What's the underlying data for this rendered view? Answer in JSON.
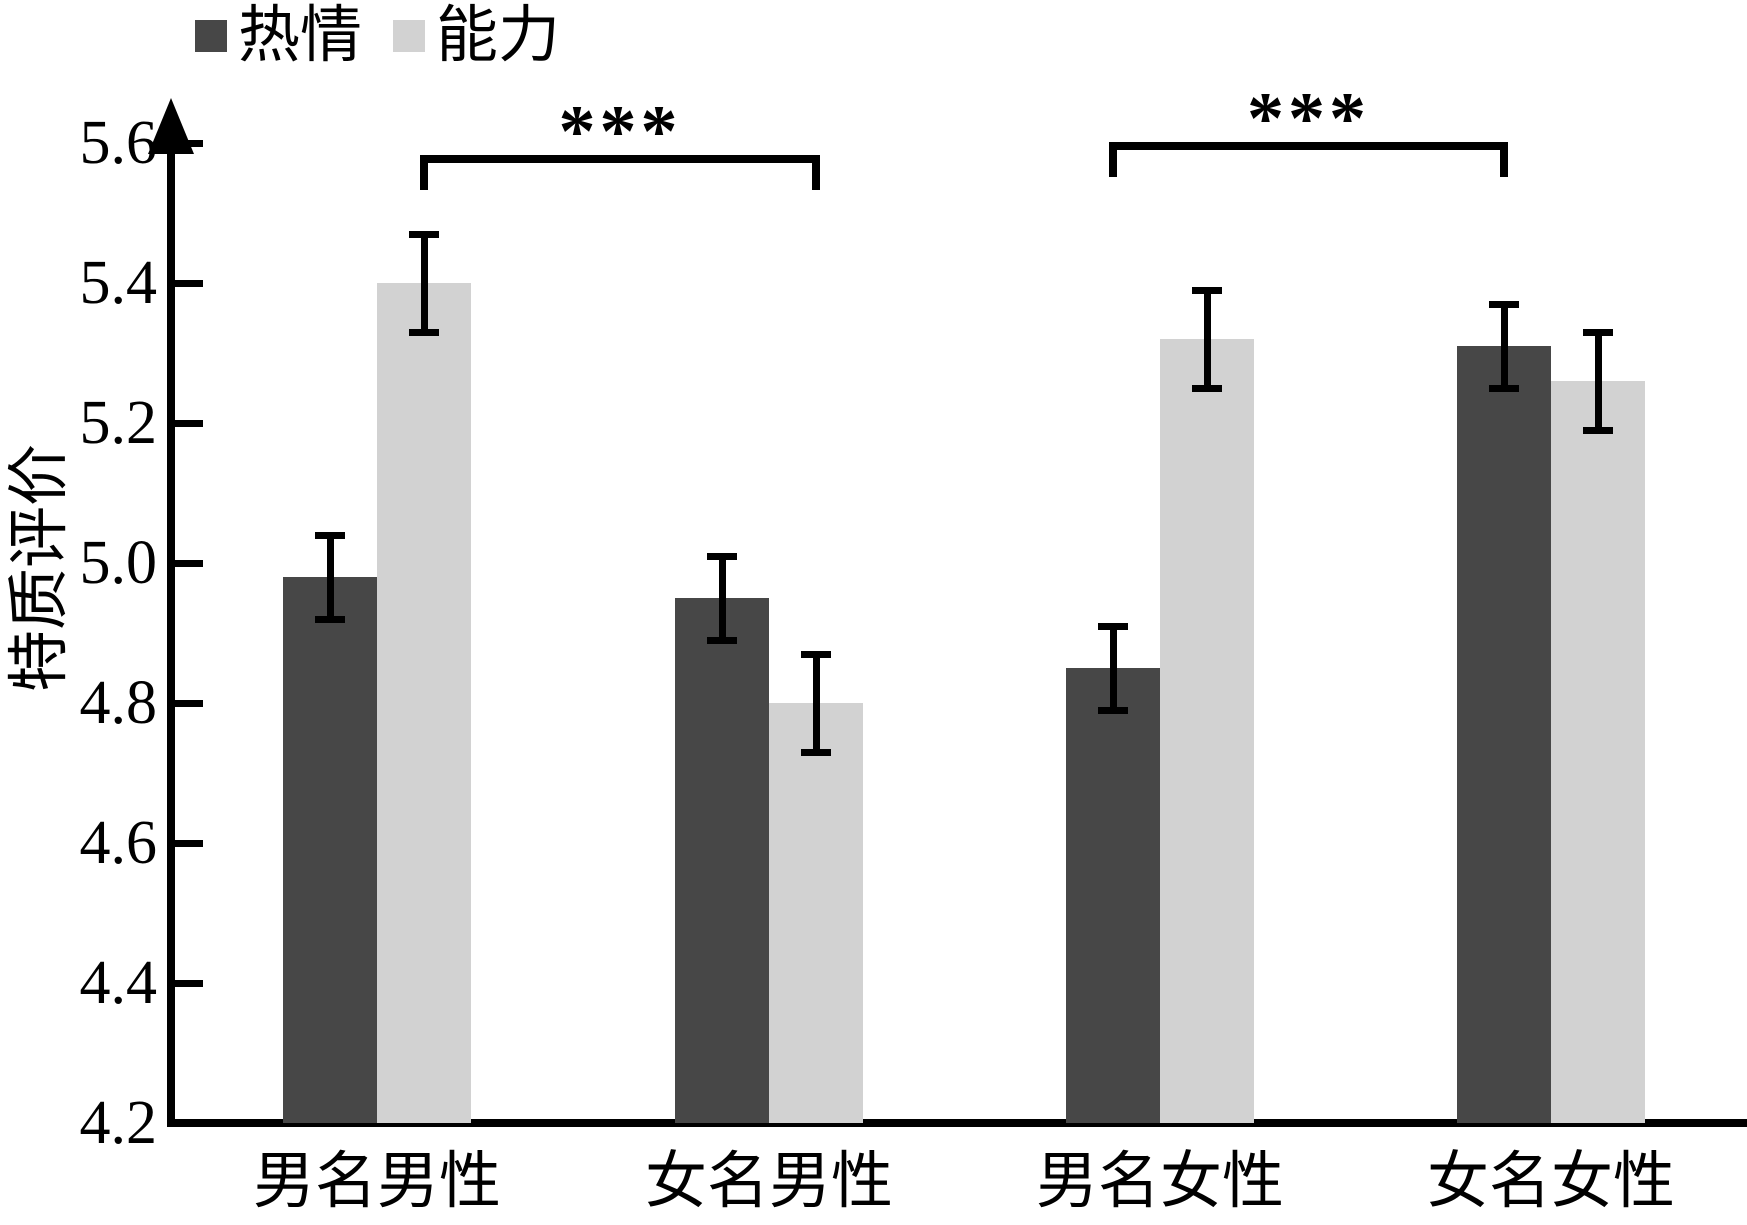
{
  "chart_data": {
    "type": "bar",
    "title": "",
    "xlabel": "",
    "ylabel": "特质评价",
    "categories": [
      "男名男性",
      "女名男性",
      "男名女性",
      "女名女性"
    ],
    "series": [
      {
        "name": "热情",
        "color": "#474747",
        "values": [
          4.98,
          4.95,
          4.85,
          5.31
        ],
        "errors": [
          0.06,
          0.06,
          0.06,
          0.06
        ]
      },
      {
        "name": "能力",
        "color": "#d2d2d2",
        "values": [
          5.4,
          4.8,
          5.32,
          5.26
        ],
        "errors": [
          0.07,
          0.07,
          0.07,
          0.07
        ]
      }
    ],
    "ylim": [
      4.2,
      5.6
    ],
    "yticks": [
      4.2,
      4.4,
      4.6,
      4.8,
      5.0,
      5.2,
      5.4,
      5.6
    ],
    "grid": false,
    "legend_position": "top-left",
    "error_bars": true,
    "axis_color": "#000000",
    "annotations": [
      {
        "label": "***",
        "type": "bracket",
        "from": {
          "group": 0,
          "series": 1
        },
        "to": {
          "group": 1,
          "series": 1
        }
      },
      {
        "label": "***",
        "type": "bracket",
        "from": {
          "group": 2,
          "series": 0
        },
        "to": {
          "group": 3,
          "series": 0
        }
      }
    ]
  }
}
